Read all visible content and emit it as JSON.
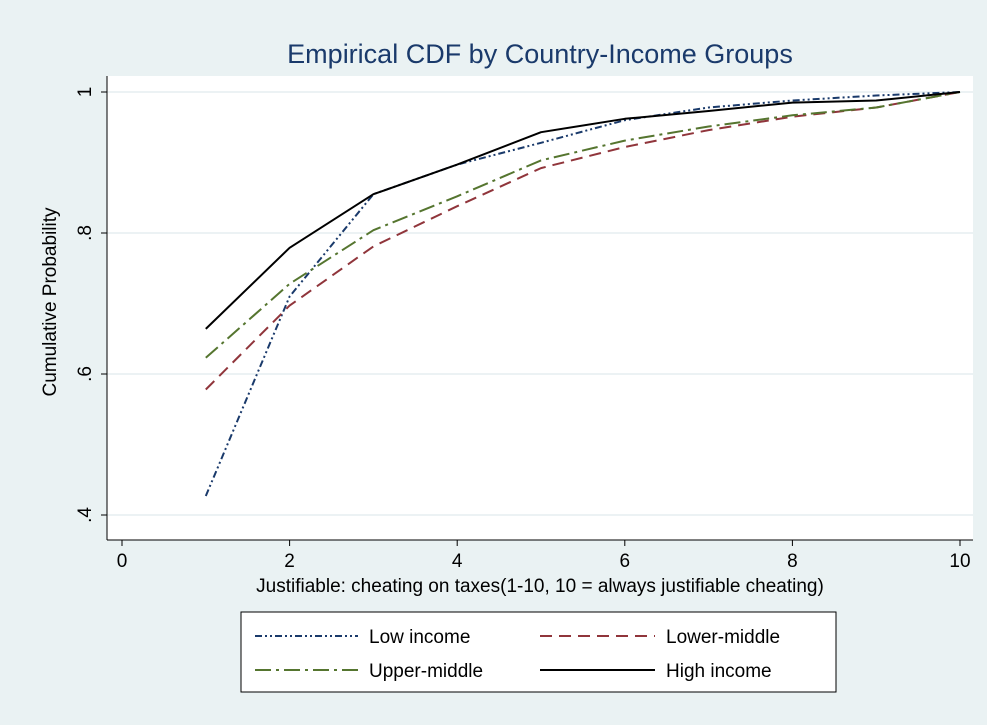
{
  "chart_data": {
    "type": "line",
    "title": "Empirical CDF by Country-Income Groups",
    "xlabel": "Justifiable: cheating on taxes(1-10, 10 = always justifiable cheating)",
    "ylabel": "Cumulative Probability",
    "xlim": [
      0,
      10
    ],
    "ylim": [
      0.4,
      1.0
    ],
    "xticks": [
      0,
      2,
      4,
      6,
      8,
      10
    ],
    "xtick_labels": [
      "0",
      "2",
      "4",
      "6",
      "8",
      "10"
    ],
    "yticks": [
      0.4,
      0.6,
      0.8,
      1.0
    ],
    "ytick_labels": [
      ".4",
      ".6",
      ".8",
      "1"
    ],
    "grid": true,
    "legend_position": "bottom",
    "x": [
      1,
      2,
      3,
      4,
      5,
      6,
      7,
      8,
      9,
      10
    ],
    "series": [
      {
        "name": "Low income",
        "color": "#1a3a6b",
        "dash": "dash-dot-dot",
        "values": [
          0.427,
          0.71,
          0.855,
          0.897,
          0.928,
          0.96,
          0.978,
          0.988,
          0.995,
          1.0
        ]
      },
      {
        "name": "Lower-middle",
        "color": "#90353b",
        "dash": "dash",
        "values": [
          0.578,
          0.697,
          0.781,
          0.838,
          0.892,
          0.922,
          0.946,
          0.965,
          0.978,
          1.0
        ]
      },
      {
        "name": "Upper-middle",
        "color": "#55752f",
        "dash": "long-dash-dot",
        "values": [
          0.623,
          0.728,
          0.804,
          0.852,
          0.903,
          0.931,
          0.951,
          0.967,
          0.978,
          1.0
        ]
      },
      {
        "name": "High income",
        "color": "#000000",
        "dash": "solid",
        "values": [
          0.664,
          0.779,
          0.855,
          0.897,
          0.943,
          0.962,
          0.973,
          0.985,
          0.988,
          1.0
        ]
      }
    ]
  }
}
